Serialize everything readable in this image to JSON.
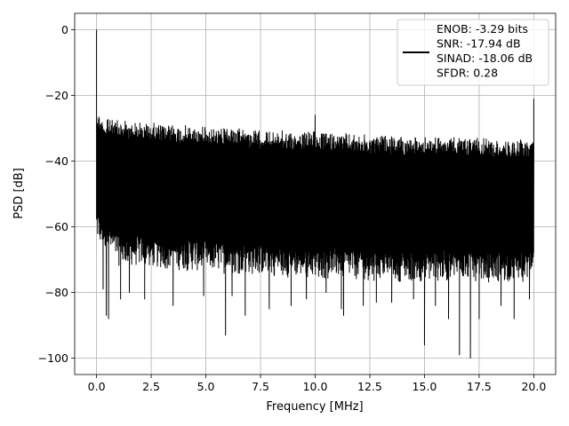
{
  "chart_data": {
    "type": "line",
    "xlabel": "Frequency [MHz]",
    "ylabel": "PSD [dB]",
    "xlim": [
      -1,
      21
    ],
    "ylim": [
      -105,
      5
    ],
    "xticks": [
      0.0,
      2.5,
      5.0,
      7.5,
      10.0,
      12.5,
      15.0,
      17.5,
      20.0
    ],
    "xtick_labels": [
      "0.0",
      "2.5",
      "5.0",
      "7.5",
      "10.0",
      "12.5",
      "15.0",
      "17.5",
      "20.0"
    ],
    "yticks": [
      0,
      -20,
      -40,
      -60,
      -80,
      -100
    ],
    "ytick_labels": [
      "0",
      "−20",
      "−40",
      "−60",
      "−80",
      "−100"
    ],
    "grid": true,
    "legend_position": "top-right",
    "series": [
      {
        "name": "ENOB: -3.29 bits\nSNR: -17.94 dB\nSINAD: -18.06 dB\nSFDR: 0.28",
        "color": "#000000",
        "envelope_upper": [
          [
            0.05,
            -24
          ],
          [
            0.3,
            -27
          ],
          [
            1,
            -27.5
          ],
          [
            2,
            -28
          ],
          [
            3,
            -28.5
          ],
          [
            5,
            -29.5
          ],
          [
            7.5,
            -30.5
          ],
          [
            10,
            -31
          ],
          [
            12.5,
            -32
          ],
          [
            15,
            -32.5
          ],
          [
            17.5,
            -33
          ],
          [
            20,
            -33.5
          ]
        ],
        "envelope_lower": [
          [
            0.05,
            -65
          ],
          [
            1,
            -72
          ],
          [
            5,
            -74
          ],
          [
            10,
            -76
          ],
          [
            15,
            -77
          ],
          [
            20,
            -77
          ]
        ],
        "spikes": [
          {
            "x": 0.0,
            "y": 0
          },
          {
            "x": 10.0,
            "y": -26
          },
          {
            "x": 20.0,
            "y": -21
          },
          {
            "x": 0.3,
            "y": -79
          },
          {
            "x": 0.45,
            "y": -87
          },
          {
            "x": 0.55,
            "y": -88
          },
          {
            "x": 1.1,
            "y": -82
          },
          {
            "x": 1.5,
            "y": -80
          },
          {
            "x": 2.2,
            "y": -82
          },
          {
            "x": 3.5,
            "y": -84
          },
          {
            "x": 4.9,
            "y": -81
          },
          {
            "x": 5.9,
            "y": -93
          },
          {
            "x": 6.2,
            "y": -81
          },
          {
            "x": 6.8,
            "y": -87
          },
          {
            "x": 7.9,
            "y": -85
          },
          {
            "x": 8.9,
            "y": -84
          },
          {
            "x": 9.6,
            "y": -82
          },
          {
            "x": 10.5,
            "y": -80
          },
          {
            "x": 11.2,
            "y": -85
          },
          {
            "x": 11.3,
            "y": -87
          },
          {
            "x": 12.2,
            "y": -84
          },
          {
            "x": 12.8,
            "y": -83
          },
          {
            "x": 13.5,
            "y": -83
          },
          {
            "x": 14.5,
            "y": -82
          },
          {
            "x": 15.0,
            "y": -96
          },
          {
            "x": 15.5,
            "y": -84
          },
          {
            "x": 16.1,
            "y": -88
          },
          {
            "x": 16.6,
            "y": -99
          },
          {
            "x": 17.1,
            "y": -100
          },
          {
            "x": 17.5,
            "y": -88
          },
          {
            "x": 18.5,
            "y": -84
          },
          {
            "x": 19.1,
            "y": -88
          },
          {
            "x": 19.8,
            "y": -82
          }
        ]
      }
    ]
  }
}
